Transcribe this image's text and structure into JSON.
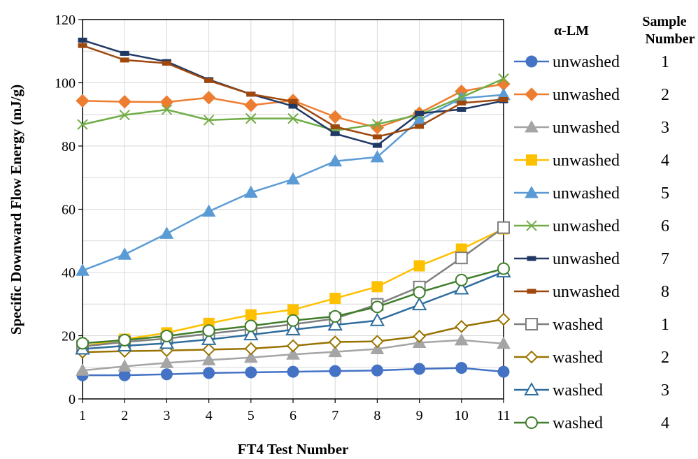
{
  "chart_data": {
    "type": "line",
    "xlabel": "FT4 Test Number",
    "ylabel": "Specific Downward Flow Energy (mJ/g)",
    "x": [
      1,
      2,
      3,
      4,
      5,
      6,
      7,
      8,
      9,
      10,
      11
    ],
    "xlim": [
      1,
      11
    ],
    "ylim": [
      0,
      120
    ],
    "x_ticks": [
      "1",
      "2",
      "3",
      "4",
      "5",
      "6",
      "7",
      "8",
      "9",
      "10",
      "11"
    ],
    "y_ticks": [
      "0",
      "20",
      "40",
      "60",
      "80",
      "100",
      "120"
    ],
    "y_tick_values": [
      0,
      20,
      40,
      60,
      80,
      100,
      120
    ],
    "grid": true,
    "legend_placement": "right",
    "legend_header_material": "α-LM",
    "legend_header_sample": [
      "Sample",
      "Number"
    ],
    "series": [
      {
        "material": "unwashed",
        "sample": "1",
        "color": "#4472C4",
        "marker": "circle-filled",
        "values": [
          7.5,
          7.5,
          7.8,
          8.2,
          8.4,
          8.6,
          8.8,
          9.0,
          9.5,
          9.8,
          8.6
        ]
      },
      {
        "material": "unwashed",
        "sample": "2",
        "color": "#ED7D31",
        "marker": "diamond-filled",
        "values": [
          94.3,
          94.0,
          93.9,
          95.3,
          92.9,
          94.4,
          89.2,
          85.8,
          90.4,
          97.3,
          99.6
        ]
      },
      {
        "material": "unwashed",
        "sample": "3",
        "color": "#A5A5A5",
        "marker": "triangle-filled",
        "values": [
          9.0,
          10.3,
          11.4,
          12.3,
          13.1,
          14.1,
          14.9,
          15.8,
          17.8,
          18.6,
          17.5
        ]
      },
      {
        "material": "unwashed",
        "sample": "4",
        "color": "#FFC000",
        "marker": "square-filled",
        "values": [
          16.6,
          18.9,
          20.9,
          23.9,
          26.6,
          28.2,
          31.8,
          35.5,
          42.1,
          47.4,
          53.8
        ]
      },
      {
        "material": "unwashed",
        "sample": "5",
        "color": "#5B9BD5",
        "marker": "triangle-filled",
        "values": [
          40.6,
          45.7,
          52.3,
          59.3,
          65.3,
          69.5,
          75.2,
          76.5,
          88.3,
          95.1,
          96.2
        ]
      },
      {
        "material": "unwashed",
        "sample": "6",
        "color": "#70AD47",
        "marker": "cross",
        "values": [
          86.8,
          89.8,
          91.5,
          88.2,
          88.7,
          88.7,
          84.9,
          86.9,
          89.9,
          95.4,
          101.3
        ]
      },
      {
        "material": "unwashed",
        "sample": "7",
        "color": "#203864",
        "marker": "dash",
        "values": [
          113.5,
          109.3,
          106.7,
          101.0,
          96.4,
          92.6,
          83.9,
          80.2,
          90.3,
          91.6,
          94.3
        ]
      },
      {
        "material": "unwashed",
        "sample": "8",
        "color": "#9E480E",
        "marker": "dash",
        "values": [
          111.8,
          107.2,
          106.2,
          100.7,
          96.4,
          94.1,
          86.1,
          82.9,
          86.2,
          93.6,
          94.7
        ]
      },
      {
        "material": "washed",
        "sample": "1",
        "color": "#7F7F7F",
        "marker": "square-open",
        "values": [
          16.6,
          18.0,
          19.1,
          20.6,
          22.1,
          23.6,
          25.4,
          29.9,
          35.4,
          44.6,
          54.2
        ]
      },
      {
        "material": "washed",
        "sample": "2",
        "color": "#997300",
        "marker": "diamond-open",
        "values": [
          14.8,
          15.1,
          15.3,
          15.6,
          15.9,
          16.8,
          18.0,
          18.2,
          19.8,
          22.9,
          25.2
        ]
      },
      {
        "material": "washed",
        "sample": "3",
        "color": "#2E6D9E",
        "marker": "triangle-open",
        "values": [
          15.8,
          16.8,
          17.6,
          18.8,
          20.3,
          21.9,
          23.4,
          24.8,
          29.8,
          34.8,
          40.2
        ]
      },
      {
        "material": "washed",
        "sample": "4",
        "color": "#3F7E2A",
        "marker": "circle-open",
        "values": [
          17.6,
          18.6,
          19.9,
          21.6,
          23.1,
          24.8,
          26.1,
          29.1,
          33.7,
          37.6,
          41.2
        ]
      }
    ]
  }
}
